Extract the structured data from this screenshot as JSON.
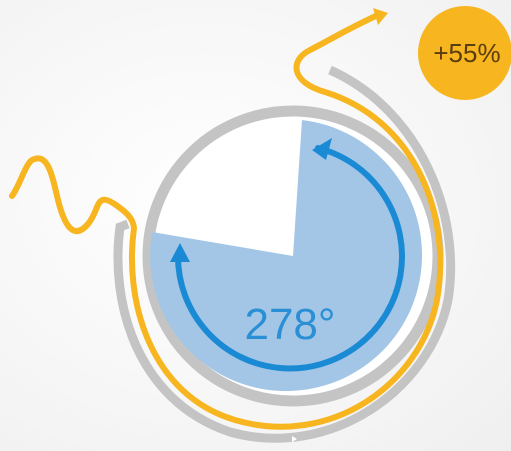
{
  "angle": {
    "label": "278°",
    "degrees": 278
  },
  "badge": {
    "label": "+55%"
  },
  "colors": {
    "pie_fill": "#a3c6e6",
    "arc_blue": "#1a8ad4",
    "ring_gray": "#c4c4c4",
    "line_yellow": "#f7b51f",
    "badge_bg": "#f7b51f"
  }
}
